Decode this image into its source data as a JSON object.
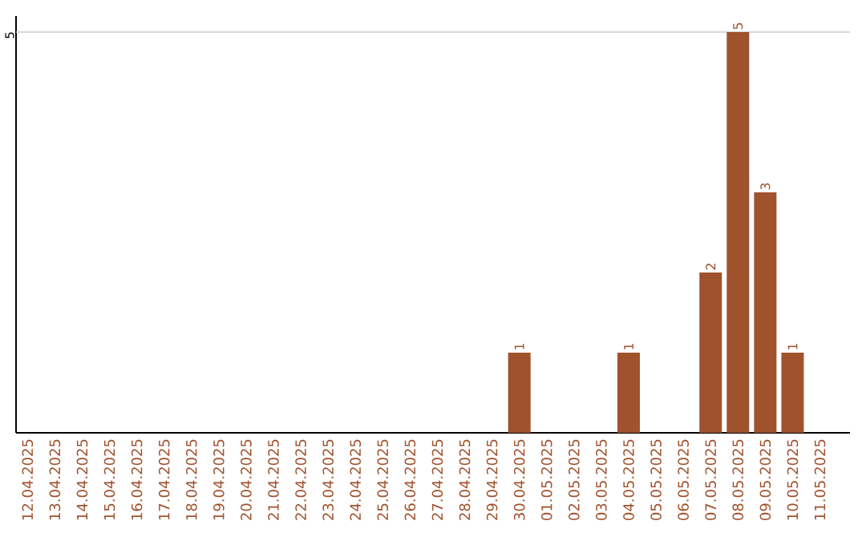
{
  "chart_data": {
    "type": "bar",
    "categories": [
      "12.04.2025",
      "13.04.2025",
      "14.04.2025",
      "15.04.2025",
      "16.04.2025",
      "17.04.2025",
      "18.04.2025",
      "19.04.2025",
      "20.04.2025",
      "21.04.2025",
      "22.04.2025",
      "23.04.2025",
      "24.04.2025",
      "25.04.2025",
      "26.04.2025",
      "27.04.2025",
      "28.04.2025",
      "29.04.2025",
      "30.04.2025",
      "01.05.2025",
      "02.05.2025",
      "03.05.2025",
      "04.05.2025",
      "05.05.2025",
      "06.05.2025",
      "07.05.2025",
      "08.05.2025",
      "09.05.2025",
      "10.05.2025",
      "11.05.2025"
    ],
    "values": [
      null,
      null,
      null,
      null,
      null,
      null,
      null,
      null,
      null,
      null,
      null,
      null,
      null,
      null,
      null,
      null,
      null,
      null,
      1,
      null,
      null,
      null,
      1,
      null,
      null,
      2,
      5,
      3,
      1,
      null
    ],
    "value_labels": [
      null,
      null,
      null,
      null,
      null,
      null,
      null,
      null,
      null,
      null,
      null,
      null,
      null,
      null,
      null,
      null,
      null,
      null,
      "1",
      null,
      null,
      null,
      "1",
      null,
      null,
      "2",
      "5",
      "3",
      "1",
      null
    ],
    "color": "#a0522d",
    "ylim": [
      0,
      5.2
    ],
    "ref_lines": [
      {
        "axis": "y",
        "value": 5,
        "label": "5",
        "color": "#cccccc"
      }
    ]
  }
}
